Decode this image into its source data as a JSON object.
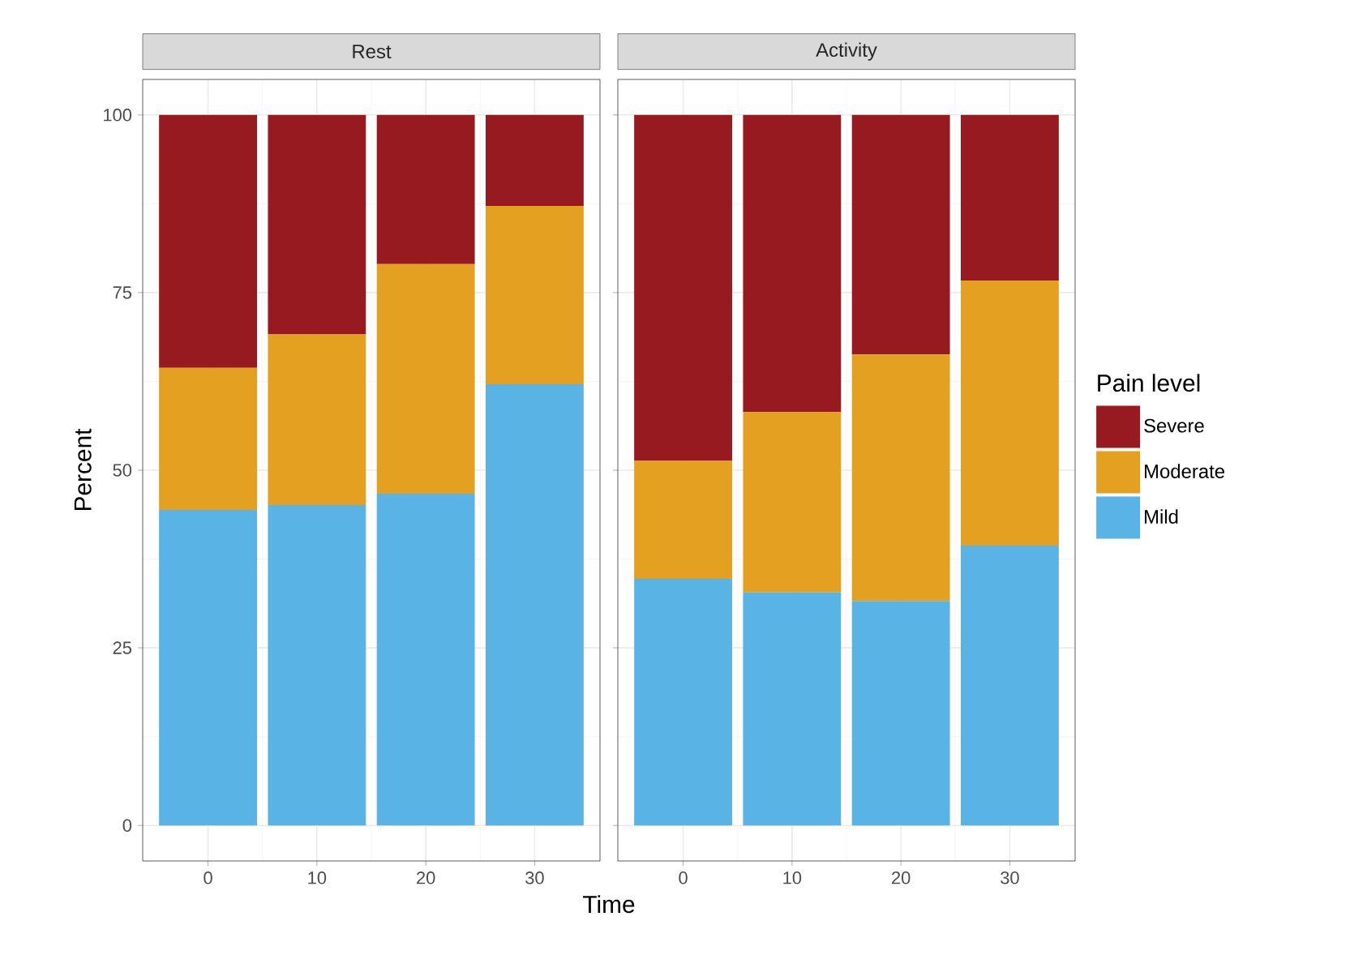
{
  "chart_data": [
    {
      "type": "bar",
      "title": "Rest",
      "categories": [
        "0",
        "10",
        "20",
        "30"
      ],
      "xlabel": "Time",
      "ylabel": "Percent",
      "stacked": true,
      "grid": true,
      "ylim": [
        -5,
        105
      ],
      "yticks": [
        0,
        25,
        50,
        75,
        100
      ],
      "series": [
        {
          "color": "#5ab3e5",
          "values": [
            44.4,
            45.1,
            46.7,
            62.1
          ]
        },
        {
          "color": "#e3a021",
          "values": [
            20.0,
            24.0,
            32.3,
            25.1
          ]
        },
        {
          "color": "#961a1f",
          "values": [
            35.6,
            30.9,
            21.0,
            12.8
          ]
        }
      ]
    },
    {
      "type": "bar",
      "title": "Activity",
      "categories": [
        "0",
        "10",
        "20",
        "30"
      ],
      "stacked": true,
      "grid": true,
      "ylim": [
        -5,
        105
      ],
      "yticks": [
        0,
        25,
        50,
        75,
        100
      ],
      "tick_labels": "x",
      "legend": "right",
      "legend_title": "Pain level",
      "series": [
        {
          "name": "Mild",
          "color": "#5ab3e5",
          "values": [
            34.7,
            32.8,
            31.6,
            39.4
          ]
        },
        {
          "name": "Moderate",
          "color": "#e3a021",
          "values": [
            16.6,
            25.4,
            34.7,
            37.3
          ]
        },
        {
          "name": "Severe",
          "color": "#961a1f",
          "values": [
            48.7,
            41.8,
            33.7,
            23.3
          ]
        }
      ]
    }
  ]
}
